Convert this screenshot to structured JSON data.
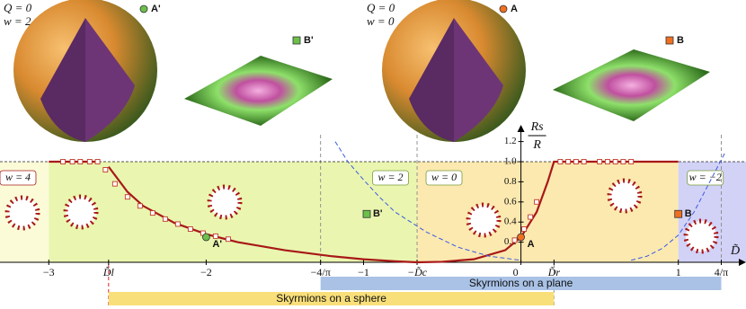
{
  "chart_data": {
    "type": "line",
    "xlim": [
      -3.31,
      1.43
    ],
    "ylim": [
      0,
      1.2
    ],
    "xticks": [
      {
        "value": -3,
        "label": "−3"
      },
      {
        "value": -2.62,
        "label": "D̃l"
      },
      {
        "value": -2,
        "label": "−2"
      },
      {
        "value": -1.273,
        "label": "−4/π"
      },
      {
        "value": -1,
        "label": "−1"
      },
      {
        "value": -0.66,
        "label": "−D̃c"
      },
      {
        "value": 0,
        "label": "0"
      },
      {
        "value": 0.21,
        "label": "D̃r"
      },
      {
        "value": 1,
        "label": "1"
      },
      {
        "value": 1.273,
        "label": "4/π"
      }
    ],
    "yticks": [
      0.2,
      0.4,
      0.6,
      0.8,
      {
        "value": 1,
        "label": "1.0"
      },
      1.2
    ],
    "x_label": "D̃",
    "y_label": {
      "numerator": "Rs",
      "denominator": "R"
    },
    "series": [
      {
        "color": "#a81818",
        "width": 2.2,
        "dashed": false,
        "marker": "none",
        "x": [
          -3,
          -2.69,
          null,
          -2.62,
          -2.5,
          -2.4,
          -2.2,
          -2.0,
          -1.8,
          -1.5,
          -1.2,
          -1.0,
          -0.8,
          -0.66,
          -0.5,
          -0.3,
          -0.1,
          0,
          0.1,
          0.17,
          0.21,
          1.0
        ],
        "values": [
          1,
          1,
          null,
          0.95,
          0.7,
          0.56,
          0.39,
          0.28,
          0.2,
          0.12,
          0.06,
          0.03,
          0.01,
          0,
          0.005,
          0.03,
          0.12,
          0.25,
          0.5,
          0.8,
          1,
          1
        ]
      },
      {
        "color": "#3a5be0",
        "width": 1,
        "dashed": true,
        "marker": "none",
        "x": [
          -1.18,
          -1.1,
          -1.0,
          -0.9,
          -0.8,
          -0.6,
          -0.4,
          -0.2,
          0,
          null,
          0.7,
          0.8,
          0.9,
          1.0,
          1.1,
          1.2,
          1.3
        ],
        "values": [
          1.2,
          1.0,
          0.82,
          0.65,
          0.5,
          0.3,
          0.15,
          0.06,
          0.02,
          null,
          0.02,
          0.06,
          0.14,
          0.27,
          0.5,
          0.8,
          1.1
        ]
      },
      {
        "color": "#c0392b",
        "width": 0,
        "dashed": false,
        "marker": "square",
        "x": [
          -2.91,
          -2.85,
          -2.8,
          -2.74,
          -2.69,
          -2.64,
          -2.58,
          -2.5,
          -2.42,
          -2.34,
          -2.26,
          -2.18,
          -2.1,
          -2.02,
          -1.94,
          -1.86,
          -0.04,
          0.02,
          0.06,
          0.1,
          0.25,
          0.3,
          0.35,
          0.4,
          0.5,
          0.55,
          0.6,
          0.65,
          0.7
        ],
        "values": [
          1,
          1,
          1,
          1,
          1,
          0.92,
          0.78,
          0.65,
          0.56,
          0.49,
          0.43,
          0.38,
          0.33,
          0.29,
          0.26,
          0.23,
          0.22,
          0.33,
          0.45,
          0.6,
          1,
          1,
          1,
          1,
          1,
          1,
          1,
          1,
          1
        ]
      }
    ],
    "points": [
      {
        "label": "A'",
        "x": -2,
        "y": 0.25,
        "color": "#6cc04a",
        "shape": "circle"
      },
      {
        "label": "B'",
        "x": -0.98,
        "y": 0.48,
        "color": "#6cc04a",
        "shape": "square"
      },
      {
        "label": "A",
        "x": 0,
        "y": 0.25,
        "color": "#f07020",
        "shape": "circle"
      },
      {
        "label": "B",
        "x": 1,
        "y": 0.48,
        "color": "#f07020",
        "shape": "square"
      }
    ],
    "regions": [
      {
        "label": "w = 4",
        "color": "#fbfbd8"
      },
      {
        "label": "w = 2",
        "color": "#eaf6b0"
      },
      {
        "label": "w = 0",
        "color": "#fce9b0"
      },
      {
        "label": "w = −2",
        "color": "#d2d2f7"
      }
    ],
    "bars": [
      {
        "label": "Skyrmions on a plane",
        "color": "#a9c2e6"
      },
      {
        "label": "Skyrmions on a sphere",
        "color": "#f8df7a"
      }
    ],
    "top_labels": [
      {
        "lines": [
          "Q = 0",
          "w = 2"
        ]
      },
      {
        "lines": [
          "Q = 0",
          "w = 0"
        ]
      }
    ]
  }
}
